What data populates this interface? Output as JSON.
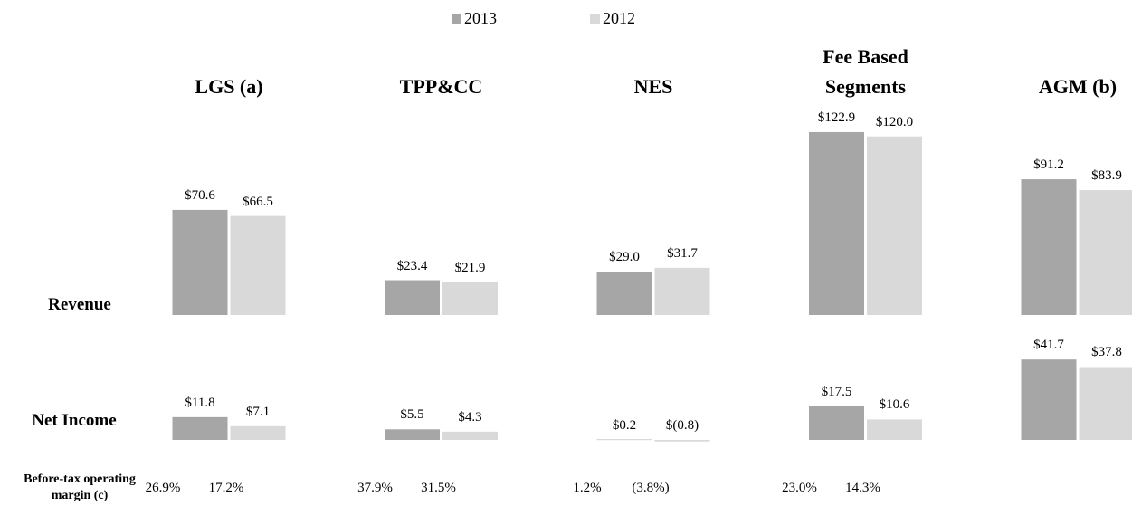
{
  "chart_data": {
    "type": "segment-bar",
    "categories": [
      "LGS (a)",
      "TPP&CC",
      "NES",
      "Fee Based Segments",
      "AGM (b)"
    ],
    "row_labels": [
      "Revenue",
      "Net Income",
      "Before-tax operating margin (c)"
    ],
    "series": [
      {
        "name": "2013",
        "color": "#a6a6a6",
        "revenue": [
          70.6,
          23.4,
          29.0,
          122.9,
          91.2
        ],
        "revenue_labels": [
          "$70.6",
          "$23.4",
          "$29.0",
          "$122.9",
          "$91.2"
        ],
        "net_income": [
          11.8,
          5.5,
          0.2,
          17.5,
          41.7
        ],
        "net_income_labels": [
          "$11.8",
          "$5.5",
          "$0.2",
          "$17.5",
          "$41.7"
        ],
        "margin": [
          26.9,
          37.9,
          1.2,
          23.0,
          null
        ],
        "margin_labels": [
          "26.9%",
          "37.9%",
          "1.2%",
          "23.0%",
          null
        ]
      },
      {
        "name": "2012",
        "color": "#d9d9d9",
        "revenue": [
          66.5,
          21.9,
          31.7,
          120.0,
          83.9
        ],
        "revenue_labels": [
          "$66.5",
          "$21.9",
          "$31.7",
          "$120.0",
          "$83.9"
        ],
        "net_income": [
          7.1,
          4.3,
          -0.8,
          10.6,
          37.8
        ],
        "net_income_labels": [
          "$7.1",
          "$4.3",
          "$(0.8)",
          "$10.6",
          "$37.8"
        ],
        "margin": [
          17.2,
          31.5,
          -3.8,
          14.3,
          null
        ],
        "margin_labels": [
          "17.2%",
          "31.5%",
          "(3.8%)",
          "14.3%",
          null
        ]
      }
    ]
  }
}
